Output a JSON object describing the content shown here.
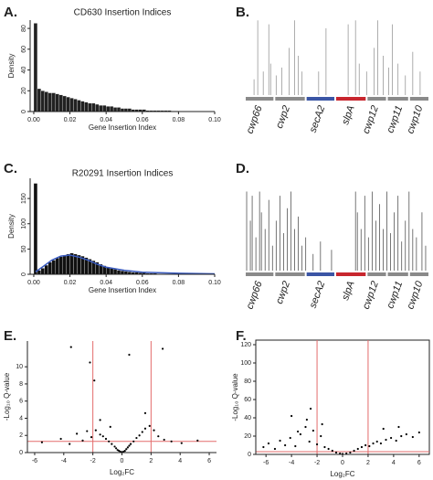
{
  "chart_data": [
    {
      "type": "histogram",
      "panel": "A.",
      "title": "CD630 Insertion Indices",
      "xlabel": "Gene Insertion Index",
      "ylabel": "Density",
      "color": "#222222",
      "bins": [
        0,
        0.002,
        0.004,
        0.006,
        0.008,
        0.01,
        0.012,
        0.014,
        0.016,
        0.018,
        0.02,
        0.022,
        0.024,
        0.026,
        0.028,
        0.03,
        0.032,
        0.034,
        0.036,
        0.038,
        0.04,
        0.042,
        0.044,
        0.046,
        0.048,
        0.05,
        0.052,
        0.054,
        0.056,
        0.058,
        0.06,
        0.062,
        0.064,
        0.066,
        0.068,
        0.07,
        0.072,
        0.074,
        0.076,
        0.078,
        0.08
      ],
      "values": [
        85,
        22,
        20,
        19,
        18,
        18,
        17,
        16,
        15,
        14,
        13,
        12,
        11,
        10,
        9,
        8,
        8,
        7,
        6,
        6,
        5,
        5,
        4,
        4,
        3,
        3,
        3,
        2,
        2,
        2,
        2,
        1,
        1,
        1,
        1,
        1,
        1,
        1,
        0.5,
        0.5
      ],
      "xlim": [
        -0.002,
        0.1
      ],
      "ylim": [
        0,
        88
      ],
      "xticks": [
        {
          "value": 0,
          "label": "0.00"
        },
        {
          "value": 0.02,
          "label": "0.02"
        },
        {
          "value": 0.04,
          "label": "0.04"
        },
        {
          "value": 0.06,
          "label": "0.06"
        },
        {
          "value": 0.08,
          "label": "0.08"
        },
        {
          "value": 0.1,
          "label": "0.10"
        }
      ],
      "yticks": [
        0,
        20,
        40,
        60,
        80
      ]
    },
    {
      "type": "gene_track",
      "panel": "B.",
      "line_color": "#999999",
      "genes": [
        {
          "name": "cwp66",
          "color": "#8a8a8a"
        },
        {
          "name": "cwp2",
          "color": "#8a8a8a"
        },
        {
          "name": "secA2",
          "color": "#3b55a5"
        },
        {
          "name": "slpA",
          "color": "#c8262e"
        },
        {
          "name": "cwp12",
          "color": "#8a8a8a"
        },
        {
          "name": "cwp11",
          "color": "#8a8a8a"
        },
        {
          "name": "cwp10",
          "color": "#8a8a8a"
        }
      ],
      "xlim": [
        0,
        1
      ],
      "ylim": [
        0,
        1
      ],
      "x": [
        0.05,
        0.07,
        0.1,
        0.13,
        0.14,
        0.17,
        0.2,
        0.24,
        0.27,
        0.29,
        0.31,
        0.4,
        0.44,
        0.56,
        0.6,
        0.62,
        0.66,
        0.7,
        0.72,
        0.75,
        0.78,
        0.8,
        0.83,
        0.87,
        0.91,
        0.95
      ],
      "values": [
        0.2,
        0.95,
        0.3,
        0.9,
        0.4,
        0.25,
        0.35,
        0.6,
        0.95,
        0.5,
        0.3,
        0.3,
        0.85,
        0.9,
        0.95,
        0.4,
        0.3,
        0.6,
        0.95,
        0.5,
        0.35,
        0.9,
        0.4,
        0.25,
        0.55,
        0.3
      ]
    },
    {
      "type": "histogram",
      "panel": "C.",
      "title": "R20291 Insertion Indices",
      "xlabel": "Gene Insertion Index",
      "ylabel": "Density",
      "color": "#111111",
      "bins": [
        0,
        0.002,
        0.004,
        0.006,
        0.008,
        0.01,
        0.012,
        0.014,
        0.016,
        0.018,
        0.02,
        0.022,
        0.024,
        0.026,
        0.028,
        0.03,
        0.032,
        0.034,
        0.036,
        0.038,
        0.04,
        0.042,
        0.044,
        0.046,
        0.048,
        0.05,
        0.052,
        0.054,
        0.056,
        0.058,
        0.06,
        0.062,
        0.064,
        0.066,
        0.068,
        0.07,
        0.072,
        0.074,
        0.076,
        0.078,
        0.08
      ],
      "values": [
        180,
        8,
        12,
        18,
        24,
        28,
        32,
        35,
        38,
        40,
        42,
        40,
        38,
        36,
        33,
        30,
        27,
        24,
        20,
        17,
        14,
        12,
        10,
        8,
        7,
        6,
        5,
        4,
        4,
        3,
        3,
        2,
        2,
        2,
        1,
        1,
        1,
        1,
        1,
        1
      ],
      "line": {
        "color": "#3a5bbf",
        "x": [
          0.001,
          0.005,
          0.01,
          0.015,
          0.02,
          0.025,
          0.03,
          0.035,
          0.04,
          0.05,
          0.06,
          0.08,
          0.1
        ],
        "values": [
          5,
          15,
          28,
          36,
          38,
          34,
          28,
          20,
          14,
          8,
          4,
          2,
          1
        ]
      },
      "xlim": [
        -0.002,
        0.1
      ],
      "ylim": [
        0,
        190
      ],
      "xticks": [
        {
          "value": 0,
          "label": "0.00"
        },
        {
          "value": 0.02,
          "label": "0.02"
        },
        {
          "value": 0.04,
          "label": "0.04"
        },
        {
          "value": 0.06,
          "label": "0.06"
        },
        {
          "value": 0.08,
          "label": "0.08"
        },
        {
          "value": 0.1,
          "label": "0.10"
        }
      ],
      "yticks": [
        0,
        50,
        100,
        150
      ]
    },
    {
      "type": "gene_track",
      "panel": "D.",
      "line_color": "#555555",
      "genes": [
        {
          "name": "cwp66",
          "color": "#8a8a8a"
        },
        {
          "name": "cwp2",
          "color": "#8a8a8a"
        },
        {
          "name": "secA2",
          "color": "#3b55a5"
        },
        {
          "name": "slpA",
          "color": "#c8262e"
        },
        {
          "name": "cwp12",
          "color": "#8a8a8a"
        },
        {
          "name": "cwp11",
          "color": "#8a8a8a"
        },
        {
          "name": "cwp10",
          "color": "#8a8a8a"
        }
      ],
      "xlim": [
        0,
        1
      ],
      "ylim": [
        0,
        1
      ],
      "x": [
        0.01,
        0.03,
        0.04,
        0.06,
        0.08,
        0.09,
        0.11,
        0.13,
        0.15,
        0.17,
        0.19,
        0.21,
        0.23,
        0.25,
        0.27,
        0.29,
        0.31,
        0.33,
        0.37,
        0.41,
        0.47,
        0.6,
        0.61,
        0.63,
        0.65,
        0.67,
        0.69,
        0.71,
        0.73,
        0.75,
        0.77,
        0.79,
        0.81,
        0.83,
        0.85,
        0.87,
        0.89,
        0.91,
        0.93,
        0.96,
        0.98
      ],
      "values": [
        0.95,
        0.6,
        0.9,
        0.4,
        0.95,
        0.7,
        0.5,
        0.85,
        0.3,
        0.6,
        0.9,
        0.45,
        0.75,
        0.95,
        0.5,
        0.65,
        0.3,
        0.4,
        0.2,
        0.35,
        0.25,
        0.95,
        0.7,
        0.5,
        0.9,
        0.4,
        0.95,
        0.6,
        0.8,
        0.5,
        0.95,
        0.45,
        0.7,
        0.9,
        0.35,
        0.6,
        0.95,
        0.5,
        0.4,
        0.7,
        0.3
      ]
    },
    {
      "type": "scatter",
      "panel": "E.",
      "xlabel": "Log₂FC",
      "ylabel": "-Log₁₀ Q-value",
      "color": "#000000",
      "threshold_color": "#e36b6b",
      "frame": false,
      "x": [
        -5.5,
        -4.2,
        -3.6,
        -3.1,
        -2.7,
        -2.4,
        -2.1,
        -1.8,
        -1.5,
        -1.3,
        -1.1,
        -0.9,
        -0.7,
        -0.5,
        -0.4,
        -0.3,
        -0.2,
        -0.1,
        0,
        0.1,
        0.2,
        0.3,
        0.4,
        0.5,
        0.6,
        0.8,
        1.0,
        1.2,
        1.4,
        1.6,
        1.9,
        2.2,
        2.5,
        2.9,
        3.4,
        4.1,
        5.2,
        -2.2,
        -1.9,
        0.5,
        2.8,
        -3.5,
        -1.5,
        1.6,
        -0.8
      ],
      "values": [
        1.2,
        1.6,
        1.0,
        2.2,
        1.4,
        2.5,
        1.8,
        2.6,
        2.1,
        1.9,
        1.6,
        1.3,
        1.0,
        0.7,
        0.5,
        0.3,
        0.2,
        0.1,
        0.05,
        0.1,
        0.2,
        0.4,
        0.6,
        0.8,
        1.0,
        1.3,
        1.7,
        2.0,
        2.4,
        2.8,
        3.1,
        2.6,
        1.9,
        1.5,
        1.3,
        1.1,
        1.4,
        10.5,
        8.4,
        11.4,
        12.1,
        12.3,
        3.8,
        4.6,
        3.0
      ],
      "vlines": [
        -2,
        2
      ],
      "hline": 1.3,
      "xlim": [
        -6.5,
        6.5
      ],
      "ylim": [
        0,
        13
      ],
      "xticks": [
        -6,
        -4,
        -2,
        0,
        2,
        4,
        6
      ],
      "yticks": [
        0,
        2,
        4,
        6,
        8,
        10
      ]
    },
    {
      "type": "scatter",
      "panel": "F.",
      "xlabel": "Log₂FC",
      "ylabel": "-Log₁₀ Q-value",
      "color": "#000000",
      "threshold_color": "#e36b6b",
      "frame": true,
      "x": [
        -6.2,
        -5.8,
        -5.3,
        -4.9,
        -4.5,
        -4.1,
        -3.7,
        -3.3,
        -2.9,
        -2.6,
        -2.3,
        -2.0,
        -1.7,
        -1.4,
        -1.1,
        -0.8,
        -0.5,
        -0.2,
        0,
        0.3,
        0.6,
        0.9,
        1.2,
        1.5,
        1.8,
        2.1,
        2.4,
        2.7,
        3.0,
        3.4,
        3.8,
        4.2,
        4.6,
        5.0,
        5.5,
        6.0,
        -2.5,
        -2.8,
        -4.0,
        -1.6,
        3.2,
        4.4,
        -3.5
      ],
      "values": [
        8,
        12,
        6,
        15,
        10,
        18,
        9,
        22,
        30,
        14,
        26,
        11,
        20,
        8,
        6,
        4,
        2,
        1,
        0.5,
        1,
        2,
        4,
        6,
        8,
        10,
        9,
        12,
        14,
        12,
        16,
        18,
        15,
        20,
        22,
        19,
        24,
        50,
        38,
        42,
        33,
        28,
        30,
        25
      ],
      "vlines": [
        -2,
        2
      ],
      "hline": 3,
      "xlim": [
        -6.8,
        6.8
      ],
      "ylim": [
        0,
        125
      ],
      "xticks": [
        -6,
        -4,
        -2,
        0,
        2,
        4,
        6
      ],
      "yticks": [
        0,
        20,
        40,
        60,
        80,
        100,
        120
      ]
    }
  ]
}
